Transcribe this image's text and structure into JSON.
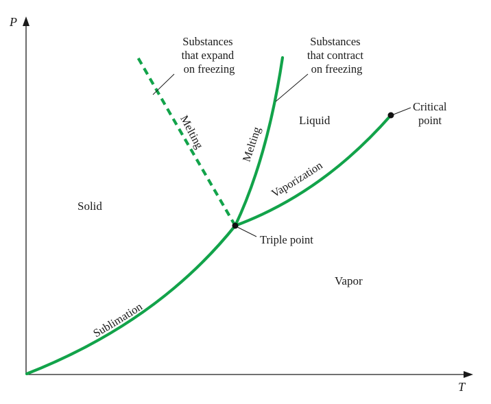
{
  "axes": {
    "y_label": "P",
    "x_label": "T"
  },
  "regions": {
    "solid": "Solid",
    "liquid": "Liquid",
    "vapor": "Vapor"
  },
  "curves": {
    "sublimation": "Sublimation",
    "vaporization": "Vaporization",
    "melting_contract": "Melting",
    "melting_expand": "Melting"
  },
  "annotations": {
    "expand": [
      "Substances",
      "that expand",
      "on freezing"
    ],
    "contract": [
      "Substances",
      "that contract",
      "on freezing"
    ],
    "critical": [
      "Critical",
      "point"
    ],
    "triple": "Triple point"
  },
  "colors": {
    "curve": "#12a34a",
    "axis": "#1a1a1a",
    "point": "#111111"
  },
  "line_styles": {
    "melting_expand": "dashed",
    "melting_contract": "solid"
  }
}
